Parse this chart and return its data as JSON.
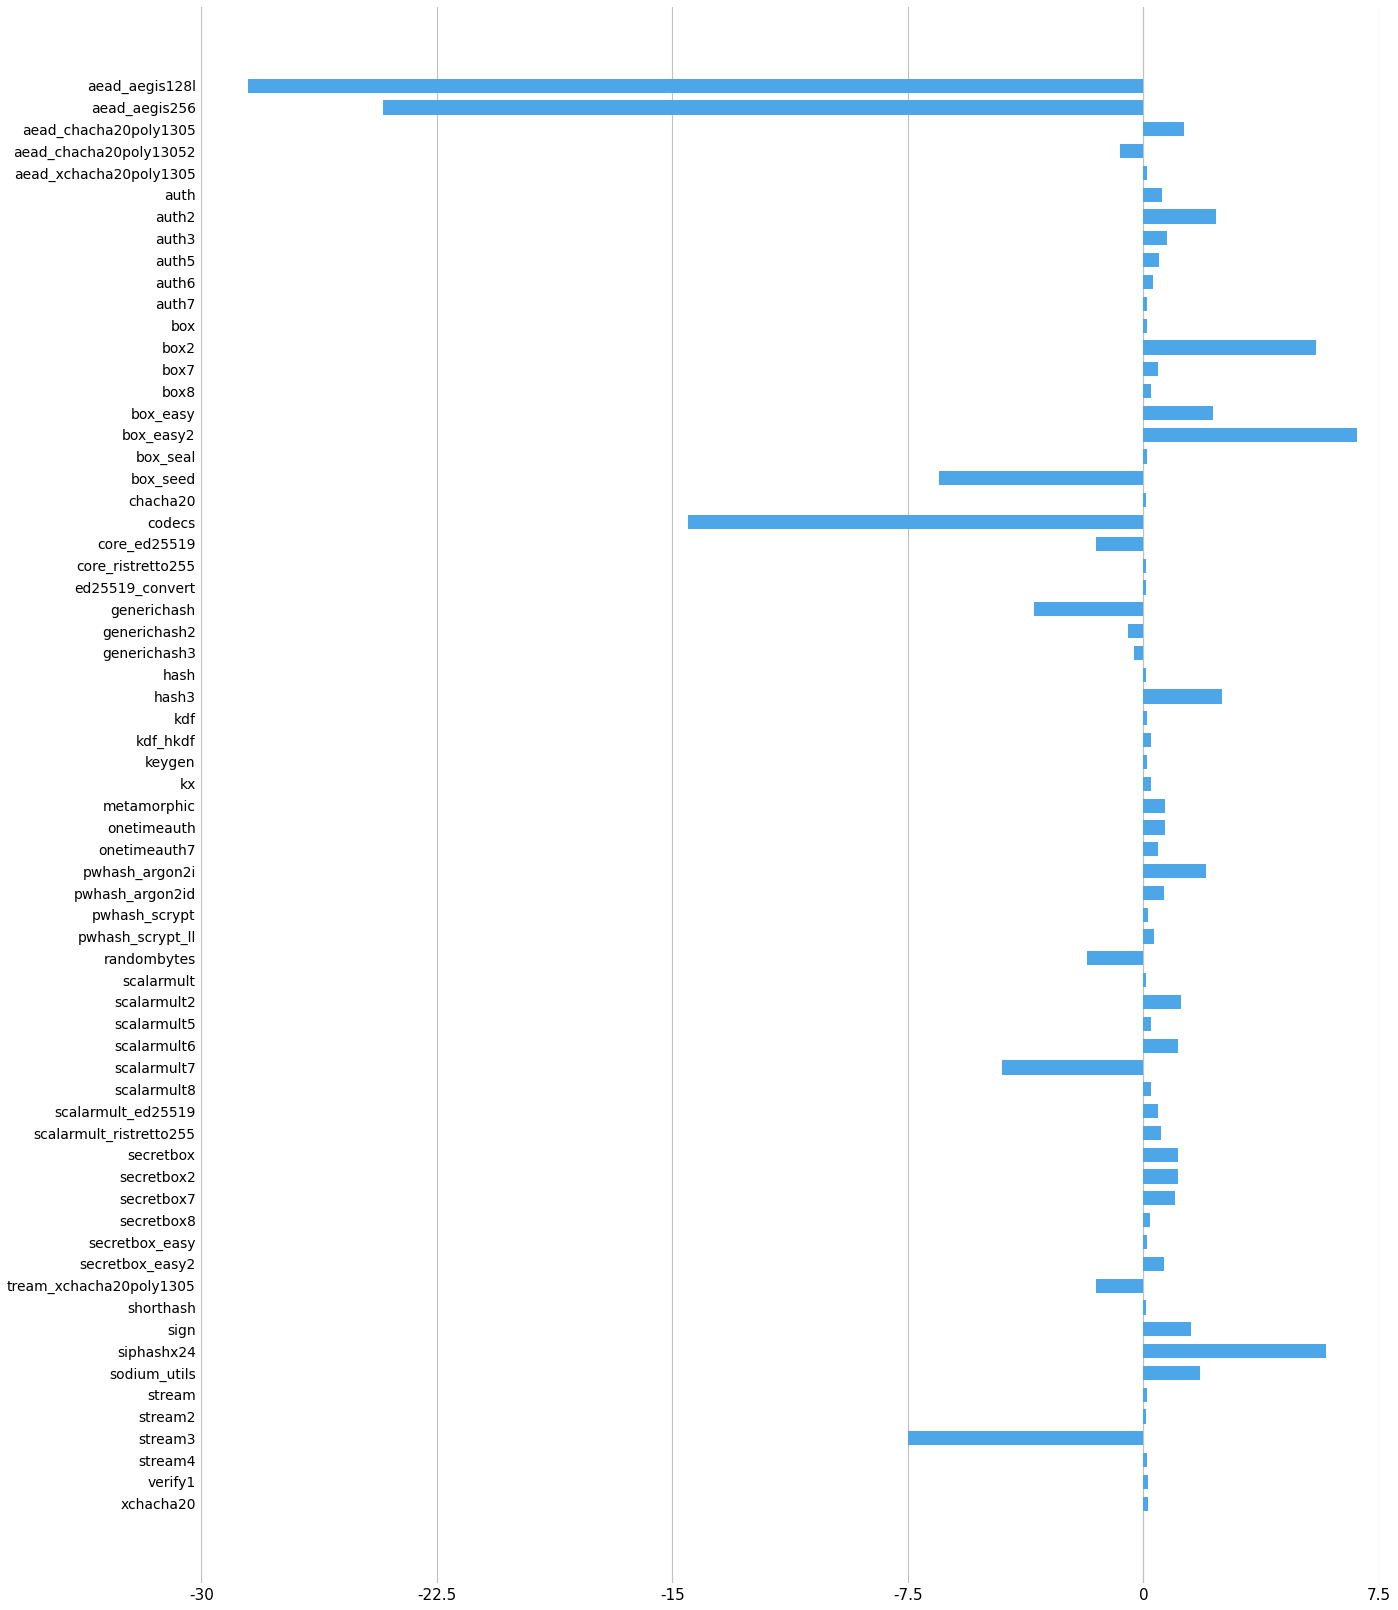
{
  "categories": [
    "aead_aegis128l",
    "aead_aegis256",
    "aead_chacha20poly1305",
    "aead_chacha20poly13052",
    "aead_xchacha20poly1305",
    "auth",
    "auth2",
    "auth3",
    "auth5",
    "auth6",
    "auth7",
    "box",
    "box2",
    "box7",
    "box8",
    "box_easy",
    "box_easy2",
    "box_seal",
    "box_seed",
    "chacha20",
    "codecs",
    "core_ed25519",
    "core_ristretto255",
    "ed25519_convert",
    "generichash",
    "generichash2",
    "generichash3",
    "hash",
    "hash3",
    "kdf",
    "kdf_hkdf",
    "keygen",
    "kx",
    "metamorphic",
    "onetimeauth",
    "onetimeauth7",
    "pwhash_argon2i",
    "pwhash_argon2id",
    "pwhash_scrypt",
    "pwhash_scrypt_ll",
    "randombytes",
    "scalarmult",
    "scalarmult2",
    "scalarmult5",
    "scalarmult6",
    "scalarmult7",
    "scalarmult8",
    "scalarmult_ed25519",
    "scalarmult_ristretto255",
    "secretbox",
    "secretbox2",
    "secretbox7",
    "secretbox8",
    "secretbox_easy",
    "secretbox_easy2",
    "tream_xchacha20poly1305",
    "shorthash",
    "sign",
    "siphashx24",
    "sodium_utils",
    "stream",
    "stream2",
    "stream3",
    "stream4",
    "verify1",
    "xchacha20"
  ],
  "values": [
    -28.5,
    -24.2,
    1.3,
    -0.75,
    0.12,
    0.6,
    2.3,
    0.75,
    0.5,
    0.3,
    0.1,
    0.12,
    5.5,
    0.45,
    0.25,
    2.2,
    6.8,
    0.12,
    -6.5,
    0.08,
    -14.5,
    -1.5,
    0.08,
    0.08,
    -3.5,
    -0.5,
    -0.3,
    0.08,
    2.5,
    0.12,
    0.25,
    0.1,
    0.25,
    0.7,
    0.7,
    0.45,
    2.0,
    0.65,
    0.15,
    0.35,
    -1.8,
    0.08,
    1.2,
    0.25,
    1.1,
    -4.5,
    0.25,
    0.45,
    0.55,
    1.1,
    1.1,
    1.0,
    0.2,
    0.12,
    0.65,
    -1.5,
    0.08,
    1.5,
    5.8,
    1.8,
    0.12,
    0.08,
    -7.5,
    0.12,
    0.15,
    0.15
  ],
  "bar_color": "#4da6e8",
  "background_color": "#ffffff",
  "xlim": [
    -30,
    7.5
  ],
  "xticks": [
    -30,
    -22.5,
    -15,
    -7.5,
    0,
    7.5
  ],
  "xtick_labels": [
    "-30",
    "-22.5",
    "-15",
    "-7.5",
    "0",
    "7.5"
  ],
  "grid_color": "#c0c0c0",
  "bar_height": 0.65,
  "fontsize_yticks": 10,
  "fontsize_xticks": 11
}
